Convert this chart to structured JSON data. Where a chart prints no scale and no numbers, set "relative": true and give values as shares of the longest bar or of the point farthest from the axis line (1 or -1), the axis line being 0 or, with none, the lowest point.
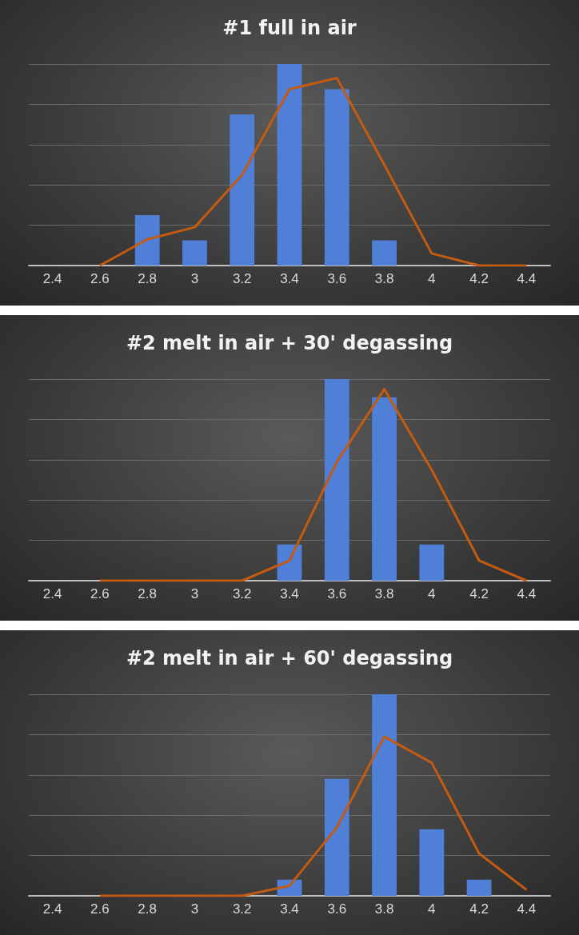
{
  "chart_data": [
    {
      "type": "bar",
      "title": "#1 full in air",
      "relative": true,
      "grid": "y",
      "categories": [
        "2.4",
        "2.6",
        "2.8",
        "3",
        "3.2",
        "3.4",
        "3.6",
        "3.8",
        "4",
        "4.2",
        "4.4"
      ],
      "series": [
        {
          "color": "#4f7fd6",
          "values": [
            0,
            0,
            0.25,
            0.125,
            0.75,
            1,
            0.875,
            0.125,
            0,
            0,
            0
          ]
        },
        {
          "type": "line",
          "color": "#c55a11",
          "marker": "none",
          "values": [
            null,
            0,
            0.13,
            0.19,
            0.45,
            0.875,
            0.93,
            0.5,
            0.06,
            0,
            0
          ]
        }
      ]
    },
    {
      "type": "bar",
      "title": "#2 melt in air + 30' degassing",
      "relative": true,
      "grid": "y",
      "categories": [
        "2.4",
        "2.6",
        "2.8",
        "3",
        "3.2",
        "3.4",
        "3.6",
        "3.8",
        "4",
        "4.2",
        "4.4"
      ],
      "series": [
        {
          "color": "#4f7fd6",
          "values": [
            0,
            0,
            0,
            0,
            0,
            0.18,
            1,
            0.91,
            0.18,
            0,
            0
          ]
        },
        {
          "type": "line",
          "color": "#c55a11",
          "marker": "none",
          "values": [
            null,
            0,
            0,
            0,
            0,
            0.1,
            0.59,
            0.95,
            0.55,
            0.1,
            0
          ]
        }
      ]
    },
    {
      "type": "bar",
      "title": "#2 melt in air + 60' degassing",
      "relative": true,
      "grid": "y",
      "categories": [
        "2.4",
        "2.6",
        "2.8",
        "3",
        "3.2",
        "3.4",
        "3.6",
        "3.8",
        "4",
        "4.2",
        "4.4"
      ],
      "series": [
        {
          "color": "#4f7fd6",
          "values": [
            0,
            0,
            0,
            0,
            0,
            0.08,
            0.58,
            1,
            0.33,
            0.08,
            0
          ]
        },
        {
          "type": "line",
          "color": "#c55a11",
          "marker": "none",
          "values": [
            null,
            0,
            0,
            0,
            0,
            0.05,
            0.34,
            0.79,
            0.66,
            0.21,
            0.03
          ]
        }
      ]
    }
  ]
}
